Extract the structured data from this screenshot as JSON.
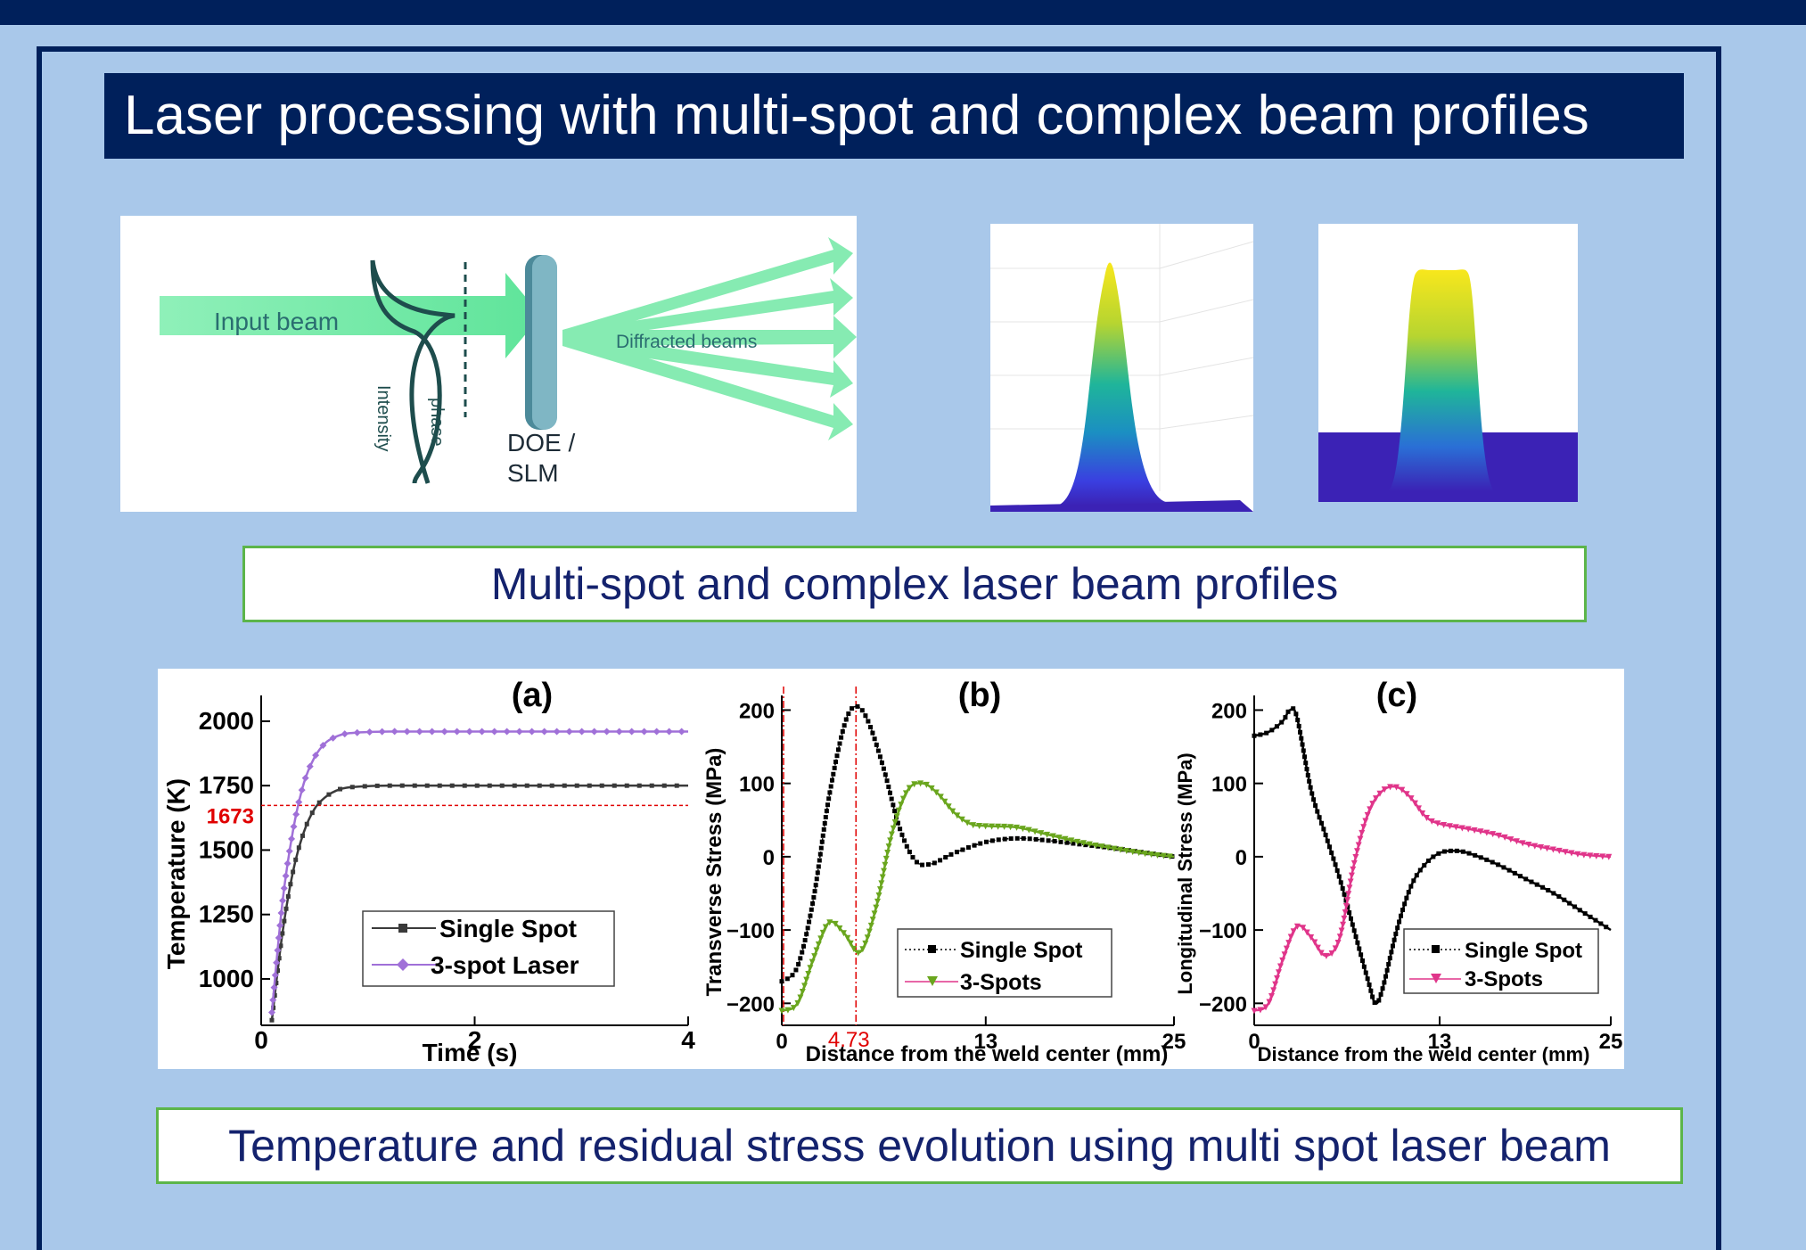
{
  "header": {
    "title": "Laser processing with multi-spot and complex beam profiles"
  },
  "doe_diagram": {
    "input_beam_label": "Input beam",
    "intensity_label": "Intensity",
    "phase_label": "phase",
    "element_label_line1": "DOE /",
    "element_label_line2": "SLM",
    "output_label": "Diffracted beams"
  },
  "captions": {
    "profiles": "Multi-spot and complex laser beam profiles",
    "evolution": "Temperature and residual stress evolution using multi spot laser beam"
  },
  "colors": {
    "navy": "#00205b",
    "background": "#a9c8ea",
    "caption_border": "#5cb54a",
    "single_spot": "#3a3a3a",
    "three_spot_a": "#a070d8",
    "three_spot_b": "#6aa61e",
    "three_spot_c": "#e0358a",
    "reference": "#e00000"
  },
  "chart_data": [
    {
      "type": "line",
      "title": "(a)",
      "xlabel": "Time (s)",
      "ylabel": "Temperature (K)",
      "xlim": [
        0,
        4
      ],
      "ylim": [
        820,
        2100
      ],
      "xticks": [
        "0",
        "2",
        "4"
      ],
      "yticks": [
        "1000",
        "1250",
        "1500",
        "1750",
        "2000"
      ],
      "reference": {
        "y": 1673,
        "label": "1673"
      },
      "legend": "lower-right",
      "series": [
        {
          "name": "Single Spot",
          "x": [
            0.1,
            0.2,
            0.3,
            0.4,
            0.5,
            0.6,
            0.7,
            0.8,
            1.0,
            1.2,
            1.5,
            2.0,
            3.0,
            4.0
          ],
          "y": [
            840,
            1180,
            1420,
            1570,
            1660,
            1705,
            1730,
            1742,
            1748,
            1750,
            1750,
            1750,
            1750,
            1750
          ]
        },
        {
          "name": "3-spot Laser",
          "x": [
            0.1,
            0.2,
            0.3,
            0.4,
            0.5,
            0.6,
            0.7,
            0.8,
            1.0,
            1.2,
            1.5,
            2.0,
            3.0,
            4.0
          ],
          "y": [
            870,
            1300,
            1580,
            1760,
            1860,
            1915,
            1940,
            1952,
            1958,
            1960,
            1960,
            1960,
            1960,
            1960
          ]
        }
      ]
    },
    {
      "type": "line",
      "title": "(b)",
      "xlabel": "Distance from the weld center (mm)",
      "ylabel": "Transverse Stress (MPa)",
      "xlim": [
        0,
        25
      ],
      "ylim": [
        -230,
        220
      ],
      "xticks": [
        "0",
        "13",
        "25"
      ],
      "yticks": [
        "-200",
        "-100",
        "0",
        "100",
        "200"
      ],
      "reference": {
        "x": 4.73,
        "label": "4.73"
      },
      "legend": "lower-right",
      "series": [
        {
          "name": "Single Spot",
          "x": [
            0,
            1,
            2,
            3,
            4,
            4.73,
            5.5,
            6.5,
            7.5,
            8.5,
            9.5,
            11,
            13,
            15,
            17,
            19,
            21,
            23,
            25
          ],
          "y": [
            -170,
            -150,
            -60,
            80,
            180,
            205,
            185,
            120,
            40,
            -5,
            -10,
            5,
            20,
            25,
            22,
            17,
            12,
            6,
            0
          ],
          "markers": true,
          "dotted": true
        },
        {
          "name": "3-Spots",
          "x": [
            0,
            1,
            2,
            3,
            4,
            5,
            6,
            7,
            8,
            9,
            10,
            11,
            12,
            13,
            15,
            17,
            19,
            21,
            23,
            25
          ],
          "y": [
            -210,
            -200,
            -140,
            -90,
            -105,
            -130,
            -70,
            30,
            90,
            100,
            85,
            60,
            45,
            42,
            40,
            30,
            20,
            12,
            5,
            0
          ]
        }
      ]
    },
    {
      "type": "line",
      "title": "(c)",
      "xlabel": "Distance from the weld center (mm)",
      "ylabel": "Longitudinal Stress (MPa)",
      "xlim": [
        0,
        25
      ],
      "ylim": [
        -230,
        220
      ],
      "xticks": [
        "0",
        "13",
        "25"
      ],
      "yticks": [
        "-200",
        "-100",
        "0",
        "100",
        "200"
      ],
      "legend": "lower-right",
      "series": [
        {
          "name": "Single Spot",
          "x": [
            0,
            1,
            2,
            2.5,
            3,
            4,
            5,
            6,
            7,
            8,
            8.5,
            9,
            10,
            11,
            12,
            13,
            14,
            15,
            17,
            19,
            21,
            23,
            25
          ],
          "y": [
            165,
            170,
            185,
            200,
            190,
            90,
            30,
            -30,
            -100,
            -170,
            -200,
            -180,
            -100,
            -40,
            -10,
            5,
            8,
            5,
            -10,
            -30,
            -50,
            -75,
            -100
          ]
        },
        {
          "name": "3-Spots",
          "x": [
            0,
            1,
            2,
            3,
            4,
            5,
            6,
            7,
            8,
            9,
            10,
            11,
            12,
            13,
            15,
            17,
            19,
            21,
            23,
            25
          ],
          "y": [
            -210,
            -200,
            -140,
            -95,
            -110,
            -135,
            -110,
            -10,
            60,
            90,
            95,
            80,
            55,
            45,
            38,
            30,
            18,
            10,
            3,
            0
          ],
          "markers": true
        }
      ]
    }
  ]
}
